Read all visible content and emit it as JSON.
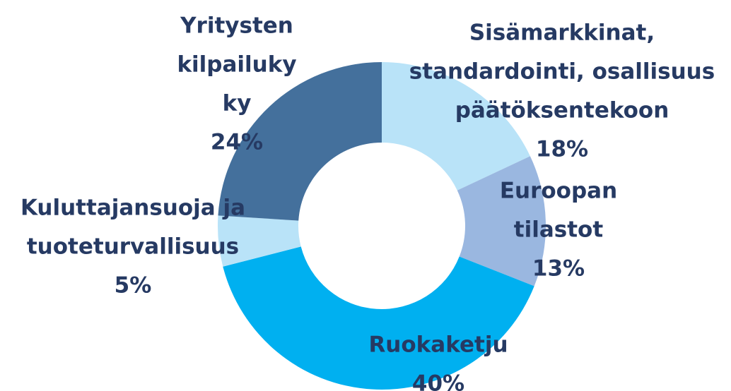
{
  "chart_data": {
    "type": "donut",
    "categories": [
      [
        "Sisämarkkinat,",
        "standardointi, osallisuus",
        "päätöksentekoon"
      ],
      [
        "Euroopan",
        "tilastot"
      ],
      [
        "Ruokaketju"
      ],
      [
        "Kuluttajansuoja ja",
        "tuoteturvallisuus"
      ],
      [
        "Yritysten",
        "kilpailuky",
        "ky"
      ]
    ],
    "values": [
      18,
      13,
      40,
      5,
      24
    ],
    "value_labels": [
      "18%",
      "13%",
      "40%",
      "5%",
      "24%"
    ],
    "colors": [
      "#b9e3f8",
      "#9ab7e0",
      "#00b0f0",
      "#b9e3f8",
      "#44709c"
    ]
  }
}
